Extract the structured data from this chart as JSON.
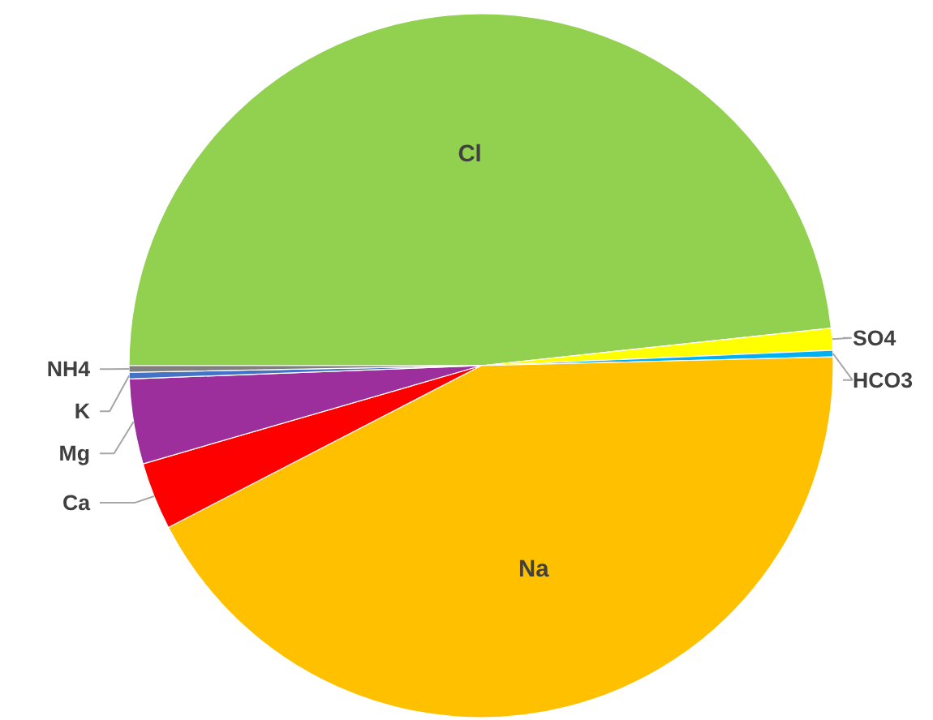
{
  "chart_data": {
    "type": "pie",
    "categories": [
      "Cl",
      "SO4",
      "HCO3",
      "Na",
      "Ca",
      "Mg",
      "K",
      "NH4"
    ],
    "values": [
      48.3,
      1.0,
      0.3,
      42.8,
      3.1,
      3.9,
      0.3,
      0.3
    ],
    "colors": [
      "#92d050",
      "#ffff00",
      "#00b0f0",
      "#ffc000",
      "#ff0000",
      "#9c2f9c",
      "#4472c4",
      "#7f7f7f"
    ]
  }
}
